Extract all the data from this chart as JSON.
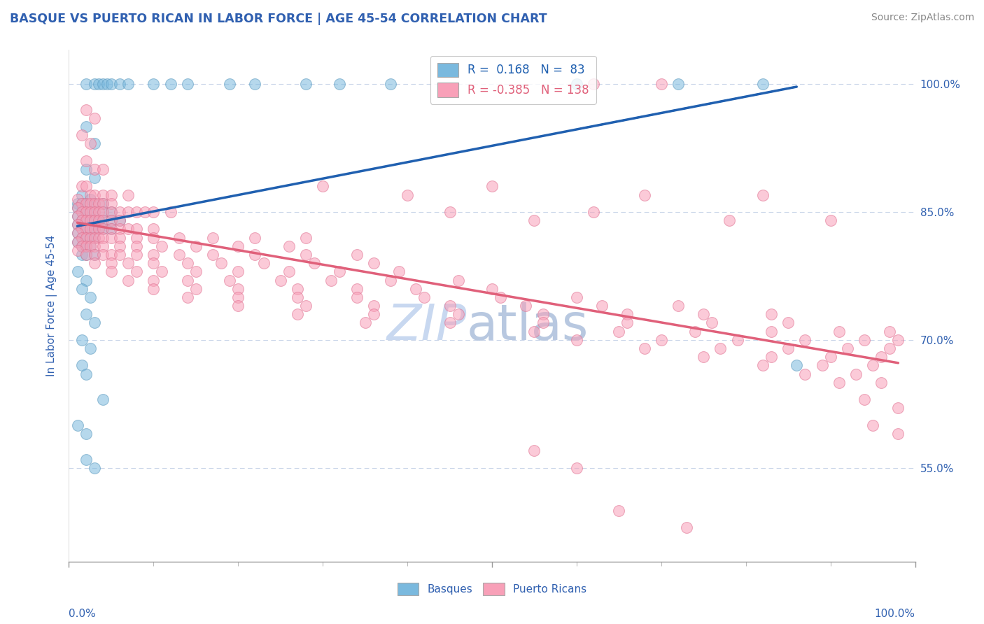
{
  "title": "BASQUE VS PUERTO RICAN IN LABOR FORCE | AGE 45-54 CORRELATION CHART",
  "source": "Source: ZipAtlas.com",
  "ylabel": "In Labor Force | Age 45-54",
  "y_ticks": [
    0.55,
    0.7,
    0.85,
    1.0
  ],
  "y_tick_labels": [
    "55.0%",
    "70.0%",
    "85.0%",
    "100.0%"
  ],
  "x_range": [
    0.0,
    1.0
  ],
  "y_range": [
    0.44,
    1.04
  ],
  "basque_R": 0.168,
  "basque_N": 83,
  "puerto_rican_R": -0.385,
  "puerto_rican_N": 138,
  "basque_color": "#7ab9de",
  "basque_edge_color": "#5a99be",
  "puerto_rican_color": "#f8a0b8",
  "puerto_rican_edge_color": "#e07090",
  "basque_line_color": "#2060b0",
  "puerto_rican_line_color": "#e0607a",
  "title_color": "#3060b0",
  "tick_label_color": "#3060b0",
  "watermark_color": "#c8d8f0",
  "grid_color": "#c8d4e8",
  "basque_points": [
    [
      0.02,
      1.0
    ],
    [
      0.03,
      1.0
    ],
    [
      0.035,
      1.0
    ],
    [
      0.04,
      1.0
    ],
    [
      0.045,
      1.0
    ],
    [
      0.05,
      1.0
    ],
    [
      0.06,
      1.0
    ],
    [
      0.07,
      1.0
    ],
    [
      0.1,
      1.0
    ],
    [
      0.12,
      1.0
    ],
    [
      0.14,
      1.0
    ],
    [
      0.19,
      1.0
    ],
    [
      0.22,
      1.0
    ],
    [
      0.28,
      1.0
    ],
    [
      0.32,
      1.0
    ],
    [
      0.38,
      1.0
    ],
    [
      0.6,
      1.0
    ],
    [
      0.72,
      1.0
    ],
    [
      0.82,
      1.0
    ],
    [
      0.02,
      0.95
    ],
    [
      0.03,
      0.93
    ],
    [
      0.02,
      0.9
    ],
    [
      0.03,
      0.89
    ],
    [
      0.015,
      0.87
    ],
    [
      0.025,
      0.865
    ],
    [
      0.01,
      0.86
    ],
    [
      0.015,
      0.86
    ],
    [
      0.02,
      0.86
    ],
    [
      0.03,
      0.86
    ],
    [
      0.04,
      0.86
    ],
    [
      0.01,
      0.855
    ],
    [
      0.015,
      0.85
    ],
    [
      0.02,
      0.85
    ],
    [
      0.025,
      0.85
    ],
    [
      0.03,
      0.85
    ],
    [
      0.04,
      0.85
    ],
    [
      0.05,
      0.85
    ],
    [
      0.01,
      0.845
    ],
    [
      0.015,
      0.84
    ],
    [
      0.02,
      0.84
    ],
    [
      0.025,
      0.84
    ],
    [
      0.03,
      0.84
    ],
    [
      0.035,
      0.84
    ],
    [
      0.04,
      0.84
    ],
    [
      0.05,
      0.84
    ],
    [
      0.06,
      0.84
    ],
    [
      0.01,
      0.835
    ],
    [
      0.015,
      0.83
    ],
    [
      0.02,
      0.83
    ],
    [
      0.025,
      0.83
    ],
    [
      0.03,
      0.83
    ],
    [
      0.035,
      0.83
    ],
    [
      0.04,
      0.83
    ],
    [
      0.05,
      0.83
    ],
    [
      0.01,
      0.825
    ],
    [
      0.015,
      0.82
    ],
    [
      0.02,
      0.82
    ],
    [
      0.025,
      0.82
    ],
    [
      0.03,
      0.82
    ],
    [
      0.01,
      0.815
    ],
    [
      0.015,
      0.81
    ],
    [
      0.02,
      0.81
    ],
    [
      0.025,
      0.81
    ],
    [
      0.015,
      0.8
    ],
    [
      0.02,
      0.8
    ],
    [
      0.03,
      0.8
    ],
    [
      0.01,
      0.78
    ],
    [
      0.02,
      0.77
    ],
    [
      0.015,
      0.76
    ],
    [
      0.025,
      0.75
    ],
    [
      0.02,
      0.73
    ],
    [
      0.03,
      0.72
    ],
    [
      0.015,
      0.7
    ],
    [
      0.025,
      0.69
    ],
    [
      0.015,
      0.67
    ],
    [
      0.02,
      0.66
    ],
    [
      0.04,
      0.63
    ],
    [
      0.01,
      0.6
    ],
    [
      0.02,
      0.59
    ],
    [
      0.02,
      0.56
    ],
    [
      0.03,
      0.55
    ],
    [
      0.86,
      0.67
    ]
  ],
  "puerto_rican_points": [
    [
      0.62,
      1.0
    ],
    [
      0.7,
      1.0
    ],
    [
      0.02,
      0.97
    ],
    [
      0.03,
      0.96
    ],
    [
      0.015,
      0.94
    ],
    [
      0.025,
      0.93
    ],
    [
      0.02,
      0.91
    ],
    [
      0.03,
      0.9
    ],
    [
      0.04,
      0.9
    ],
    [
      0.015,
      0.88
    ],
    [
      0.02,
      0.88
    ],
    [
      0.025,
      0.87
    ],
    [
      0.03,
      0.87
    ],
    [
      0.04,
      0.87
    ],
    [
      0.05,
      0.87
    ],
    [
      0.07,
      0.87
    ],
    [
      0.01,
      0.865
    ],
    [
      0.015,
      0.86
    ],
    [
      0.02,
      0.86
    ],
    [
      0.025,
      0.86
    ],
    [
      0.03,
      0.86
    ],
    [
      0.035,
      0.86
    ],
    [
      0.04,
      0.86
    ],
    [
      0.05,
      0.86
    ],
    [
      0.01,
      0.855
    ],
    [
      0.015,
      0.85
    ],
    [
      0.02,
      0.85
    ],
    [
      0.025,
      0.85
    ],
    [
      0.03,
      0.85
    ],
    [
      0.035,
      0.85
    ],
    [
      0.04,
      0.85
    ],
    [
      0.05,
      0.85
    ],
    [
      0.06,
      0.85
    ],
    [
      0.07,
      0.85
    ],
    [
      0.08,
      0.85
    ],
    [
      0.09,
      0.85
    ],
    [
      0.1,
      0.85
    ],
    [
      0.12,
      0.85
    ],
    [
      0.01,
      0.845
    ],
    [
      0.015,
      0.84
    ],
    [
      0.02,
      0.84
    ],
    [
      0.025,
      0.84
    ],
    [
      0.03,
      0.84
    ],
    [
      0.035,
      0.84
    ],
    [
      0.04,
      0.84
    ],
    [
      0.05,
      0.84
    ],
    [
      0.06,
      0.84
    ],
    [
      0.01,
      0.835
    ],
    [
      0.015,
      0.83
    ],
    [
      0.02,
      0.83
    ],
    [
      0.025,
      0.83
    ],
    [
      0.03,
      0.83
    ],
    [
      0.035,
      0.83
    ],
    [
      0.04,
      0.83
    ],
    [
      0.05,
      0.83
    ],
    [
      0.06,
      0.83
    ],
    [
      0.07,
      0.83
    ],
    [
      0.08,
      0.83
    ],
    [
      0.1,
      0.83
    ],
    [
      0.01,
      0.825
    ],
    [
      0.015,
      0.82
    ],
    [
      0.02,
      0.82
    ],
    [
      0.025,
      0.82
    ],
    [
      0.03,
      0.82
    ],
    [
      0.035,
      0.82
    ],
    [
      0.04,
      0.82
    ],
    [
      0.05,
      0.82
    ],
    [
      0.06,
      0.82
    ],
    [
      0.08,
      0.82
    ],
    [
      0.1,
      0.82
    ],
    [
      0.13,
      0.82
    ],
    [
      0.17,
      0.82
    ],
    [
      0.22,
      0.82
    ],
    [
      0.28,
      0.82
    ],
    [
      0.01,
      0.815
    ],
    [
      0.015,
      0.81
    ],
    [
      0.02,
      0.81
    ],
    [
      0.025,
      0.81
    ],
    [
      0.03,
      0.81
    ],
    [
      0.04,
      0.81
    ],
    [
      0.06,
      0.81
    ],
    [
      0.08,
      0.81
    ],
    [
      0.11,
      0.81
    ],
    [
      0.15,
      0.81
    ],
    [
      0.2,
      0.81
    ],
    [
      0.26,
      0.81
    ],
    [
      0.01,
      0.805
    ],
    [
      0.02,
      0.8
    ],
    [
      0.03,
      0.8
    ],
    [
      0.04,
      0.8
    ],
    [
      0.05,
      0.8
    ],
    [
      0.06,
      0.8
    ],
    [
      0.08,
      0.8
    ],
    [
      0.1,
      0.8
    ],
    [
      0.13,
      0.8
    ],
    [
      0.17,
      0.8
    ],
    [
      0.22,
      0.8
    ],
    [
      0.28,
      0.8
    ],
    [
      0.34,
      0.8
    ],
    [
      0.03,
      0.79
    ],
    [
      0.05,
      0.79
    ],
    [
      0.07,
      0.79
    ],
    [
      0.1,
      0.79
    ],
    [
      0.14,
      0.79
    ],
    [
      0.18,
      0.79
    ],
    [
      0.23,
      0.79
    ],
    [
      0.29,
      0.79
    ],
    [
      0.36,
      0.79
    ],
    [
      0.05,
      0.78
    ],
    [
      0.08,
      0.78
    ],
    [
      0.11,
      0.78
    ],
    [
      0.15,
      0.78
    ],
    [
      0.2,
      0.78
    ],
    [
      0.26,
      0.78
    ],
    [
      0.32,
      0.78
    ],
    [
      0.39,
      0.78
    ],
    [
      0.07,
      0.77
    ],
    [
      0.1,
      0.77
    ],
    [
      0.14,
      0.77
    ],
    [
      0.19,
      0.77
    ],
    [
      0.25,
      0.77
    ],
    [
      0.31,
      0.77
    ],
    [
      0.38,
      0.77
    ],
    [
      0.46,
      0.77
    ],
    [
      0.1,
      0.76
    ],
    [
      0.15,
      0.76
    ],
    [
      0.2,
      0.76
    ],
    [
      0.27,
      0.76
    ],
    [
      0.34,
      0.76
    ],
    [
      0.41,
      0.76
    ],
    [
      0.5,
      0.76
    ],
    [
      0.14,
      0.75
    ],
    [
      0.2,
      0.75
    ],
    [
      0.27,
      0.75
    ],
    [
      0.34,
      0.75
    ],
    [
      0.42,
      0.75
    ],
    [
      0.51,
      0.75
    ],
    [
      0.6,
      0.75
    ],
    [
      0.2,
      0.74
    ],
    [
      0.28,
      0.74
    ],
    [
      0.36,
      0.74
    ],
    [
      0.45,
      0.74
    ],
    [
      0.54,
      0.74
    ],
    [
      0.63,
      0.74
    ],
    [
      0.72,
      0.74
    ],
    [
      0.27,
      0.73
    ],
    [
      0.36,
      0.73
    ],
    [
      0.46,
      0.73
    ],
    [
      0.56,
      0.73
    ],
    [
      0.66,
      0.73
    ],
    [
      0.75,
      0.73
    ],
    [
      0.83,
      0.73
    ],
    [
      0.35,
      0.72
    ],
    [
      0.45,
      0.72
    ],
    [
      0.56,
      0.72
    ],
    [
      0.66,
      0.72
    ],
    [
      0.76,
      0.72
    ],
    [
      0.85,
      0.72
    ],
    [
      0.55,
      0.71
    ],
    [
      0.65,
      0.71
    ],
    [
      0.74,
      0.71
    ],
    [
      0.83,
      0.71
    ],
    [
      0.91,
      0.71
    ],
    [
      0.97,
      0.71
    ],
    [
      0.6,
      0.7
    ],
    [
      0.7,
      0.7
    ],
    [
      0.79,
      0.7
    ],
    [
      0.87,
      0.7
    ],
    [
      0.94,
      0.7
    ],
    [
      0.98,
      0.7
    ],
    [
      0.68,
      0.69
    ],
    [
      0.77,
      0.69
    ],
    [
      0.85,
      0.69
    ],
    [
      0.92,
      0.69
    ],
    [
      0.97,
      0.69
    ],
    [
      0.75,
      0.68
    ],
    [
      0.83,
      0.68
    ],
    [
      0.9,
      0.68
    ],
    [
      0.96,
      0.68
    ],
    [
      0.82,
      0.67
    ],
    [
      0.89,
      0.67
    ],
    [
      0.95,
      0.67
    ],
    [
      0.87,
      0.66
    ],
    [
      0.93,
      0.66
    ],
    [
      0.91,
      0.65
    ],
    [
      0.96,
      0.65
    ],
    [
      0.94,
      0.63
    ],
    [
      0.98,
      0.62
    ],
    [
      0.95,
      0.6
    ],
    [
      0.98,
      0.59
    ],
    [
      0.55,
      0.57
    ],
    [
      0.6,
      0.55
    ],
    [
      0.65,
      0.5
    ],
    [
      0.3,
      0.88
    ],
    [
      0.45,
      0.85
    ],
    [
      0.4,
      0.87
    ],
    [
      0.55,
      0.84
    ],
    [
      0.5,
      0.88
    ],
    [
      0.62,
      0.85
    ],
    [
      0.68,
      0.87
    ],
    [
      0.78,
      0.84
    ],
    [
      0.82,
      0.87
    ],
    [
      0.9,
      0.84
    ],
    [
      0.73,
      0.48
    ]
  ]
}
